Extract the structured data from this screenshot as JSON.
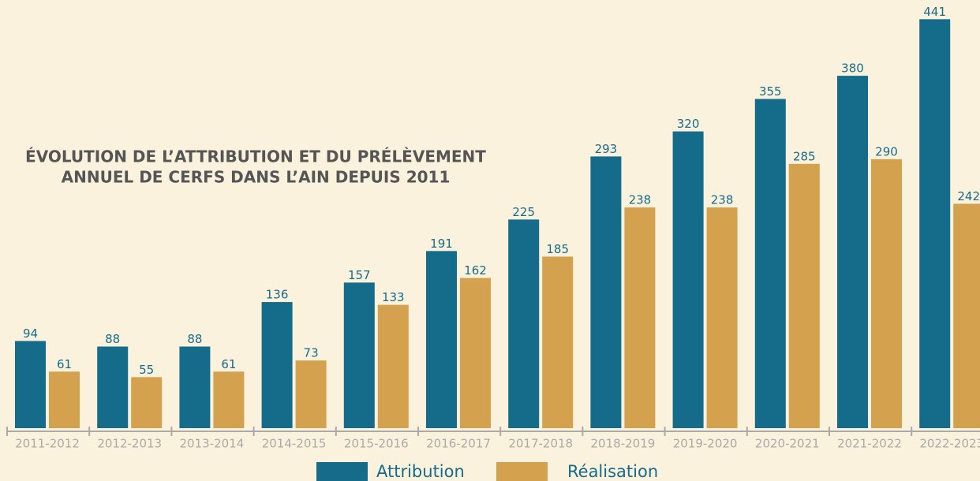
{
  "chart_data": {
    "type": "bar",
    "title": [
      "ÉVOLUTION DE L’ATTRIBUTION ET DU PRÉLÈVEMENT",
      "ANNUEL DE CERFS DANS L’AIN DEPUIS 2011"
    ],
    "categories": [
      "2011-2012",
      "2012-2013",
      "2013-2014",
      "2014-2015",
      "2015-2016",
      "2016-2017",
      "2017-2018",
      "2018-2019",
      "2019-2020",
      "2020-2021",
      "2021-2022",
      "2022-2023"
    ],
    "series": [
      {
        "name": "Attribution",
        "color": "#156b8a",
        "values": [
          94,
          88,
          88,
          136,
          157,
          191,
          225,
          293,
          320,
          355,
          380,
          441
        ]
      },
      {
        "name": "Réalisation",
        "color": "#d4a24f",
        "values": [
          61,
          55,
          61,
          73,
          133,
          162,
          185,
          238,
          238,
          285,
          290,
          242
        ]
      }
    ],
    "ylim": [
      0,
      460
    ]
  }
}
